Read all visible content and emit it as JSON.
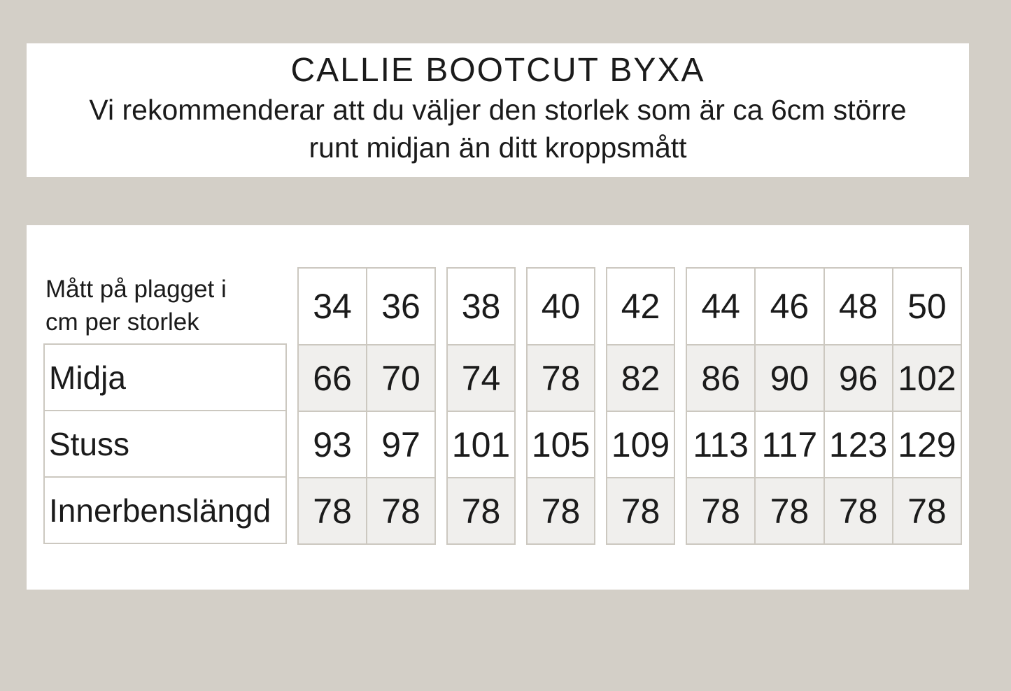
{
  "colors": {
    "page_background": "#d3cfc7",
    "card_background": "#ffffff",
    "cell_border": "#ccc8c0",
    "cell_shade": "#f0efed",
    "text": "#1b1b1b"
  },
  "header": {
    "title": "CALLIE BOOTCUT BYXA",
    "subtitle_line1": "Vi rekommenderar att du väljer den storlek som är ca 6cm större",
    "subtitle_line2": "runt midjan än ditt kroppsmått"
  },
  "size_table": {
    "corner_label": "Mått på plagget i cm per storlek",
    "row_labels": [
      "Midja",
      "Stuss",
      "Innerbenslängd"
    ],
    "column_groups": [
      {
        "sizes": [
          "34",
          "36"
        ],
        "midja": [
          "66",
          "70"
        ],
        "stuss": [
          "93",
          "97"
        ],
        "innerbenslangd": [
          "78",
          "78"
        ]
      },
      {
        "sizes": [
          "38"
        ],
        "midja": [
          "74"
        ],
        "stuss": [
          "101"
        ],
        "innerbenslangd": [
          "78"
        ]
      },
      {
        "sizes": [
          "40"
        ],
        "midja": [
          "78"
        ],
        "stuss": [
          "105"
        ],
        "innerbenslangd": [
          "78"
        ]
      },
      {
        "sizes": [
          "42"
        ],
        "midja": [
          "82"
        ],
        "stuss": [
          "109"
        ],
        "innerbenslangd": [
          "78"
        ]
      },
      {
        "sizes": [
          "44",
          "46",
          "48",
          "50"
        ],
        "midja": [
          "86",
          "90",
          "96",
          "102"
        ],
        "stuss": [
          "113",
          "117",
          "123",
          "129"
        ],
        "innerbenslangd": [
          "78",
          "78",
          "78",
          "78"
        ]
      }
    ]
  }
}
